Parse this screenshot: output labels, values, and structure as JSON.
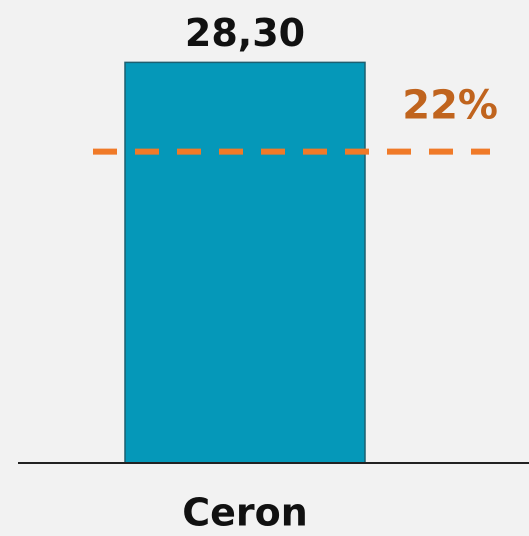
{
  "chart_data": {
    "type": "bar",
    "categories": [
      "Ceron"
    ],
    "values": [
      28.3
    ],
    "value_labels": [
      "28,30"
    ],
    "color": "#0598b9",
    "ylim": [
      0,
      32
    ],
    "reference_line": {
      "value": 22,
      "label": "22%",
      "color": "#f07a28"
    }
  }
}
